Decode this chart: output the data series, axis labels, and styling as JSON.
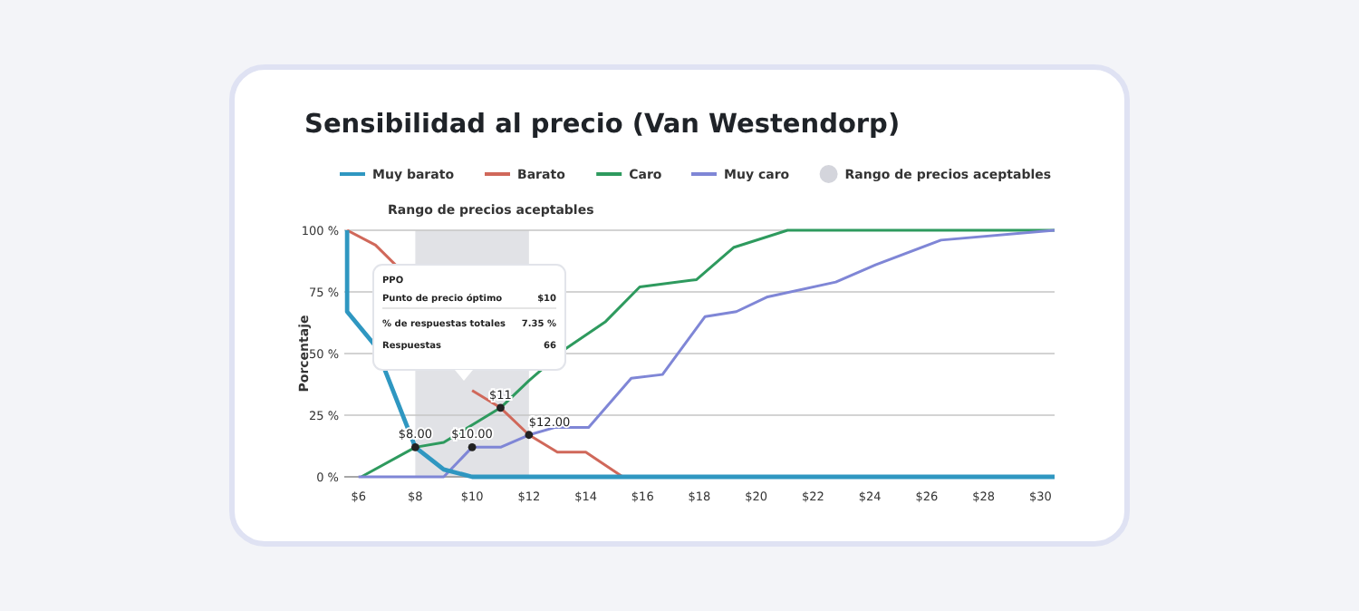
{
  "chart_data": {
    "type": "line",
    "title": "Sensibilidad al precio (Van Westendorp)",
    "ylabel": "Porcentaje",
    "legend": "top",
    "grid": "y",
    "marker": "none",
    "line_style": "solid",
    "xlim": [
      5.5,
      30.5
    ],
    "ylim": [
      0,
      100
    ],
    "xticks": [
      {
        "value": 6,
        "label": "$6"
      },
      {
        "value": 8,
        "label": "$8"
      },
      {
        "value": 10,
        "label": "$10"
      },
      {
        "value": 12,
        "label": "$12"
      },
      {
        "value": 14,
        "label": "$14"
      },
      {
        "value": 16,
        "label": "$16"
      },
      {
        "value": 18,
        "label": "$18"
      },
      {
        "value": 20,
        "label": "$20"
      },
      {
        "value": 22,
        "label": "$22"
      },
      {
        "value": 24,
        "label": "$24"
      },
      {
        "value": 26,
        "label": "$26"
      },
      {
        "value": 28,
        "label": "$28"
      },
      {
        "value": 30,
        "label": "$30"
      }
    ],
    "yticks": [
      {
        "value": 0,
        "label": "0 %"
      },
      {
        "value": 25,
        "label": "25 %"
      },
      {
        "value": 50,
        "label": "50 %"
      },
      {
        "value": 75,
        "label": "75 %"
      },
      {
        "value": 100,
        "label": "100 %"
      }
    ],
    "series": [
      {
        "name": "Barato",
        "color": "#d0685a",
        "x": [
          5.6,
          6.6,
          7.3,
          9.4,
          10,
          11,
          12,
          13,
          14,
          15.3
        ],
        "values": [
          100,
          94,
          86,
          null,
          35,
          28,
          17,
          10,
          10,
          0
        ]
      },
      {
        "name": "Caro",
        "color": "#2e9a5e",
        "x": [
          6.1,
          8,
          9,
          11,
          12,
          13.3,
          14.7,
          15.9,
          17.9,
          19.2,
          21.1,
          30.5
        ],
        "values": [
          0,
          12,
          14,
          28,
          39,
          52,
          63,
          77,
          80,
          93,
          100,
          100
        ]
      },
      {
        "name": "Muy caro",
        "color": "#7f86d6",
        "x": [
          6,
          9,
          10,
          11,
          12,
          12.9,
          14.1,
          15.6,
          16.7,
          18.2,
          19.3,
          20.4,
          22.8,
          24.2,
          26.5,
          30.5
        ],
        "values": [
          0,
          0,
          12,
          12,
          17,
          20,
          20,
          40,
          41.5,
          65,
          67,
          73,
          79,
          86,
          96,
          100
        ]
      },
      {
        "name": "Muy barato",
        "color": "#2f97c1",
        "x": [
          5.6,
          5.6,
          6.6,
          8,
          9,
          10,
          30.5
        ],
        "values": [
          100,
          67,
          53,
          12,
          3,
          0,
          0
        ]
      }
    ],
    "bands": [
      {
        "axis": "x",
        "from": 8,
        "to": 12,
        "label": "Rango de precios aceptables",
        "color": "#d4d5dc"
      }
    ],
    "annotations": [
      {
        "text": "$8.00",
        "x": 8,
        "y": 12
      },
      {
        "text": "$10.00",
        "x": 10,
        "y": 12
      },
      {
        "text": "$11",
        "x": 11,
        "y": 28
      },
      {
        "text": "$12.00",
        "x": 12,
        "y": 17
      },
      "PPO",
      "Punto de precio óptimo",
      "$10",
      "% de respuestas totales",
      "7.35 %",
      "Respuestas",
      "66"
    ]
  }
}
